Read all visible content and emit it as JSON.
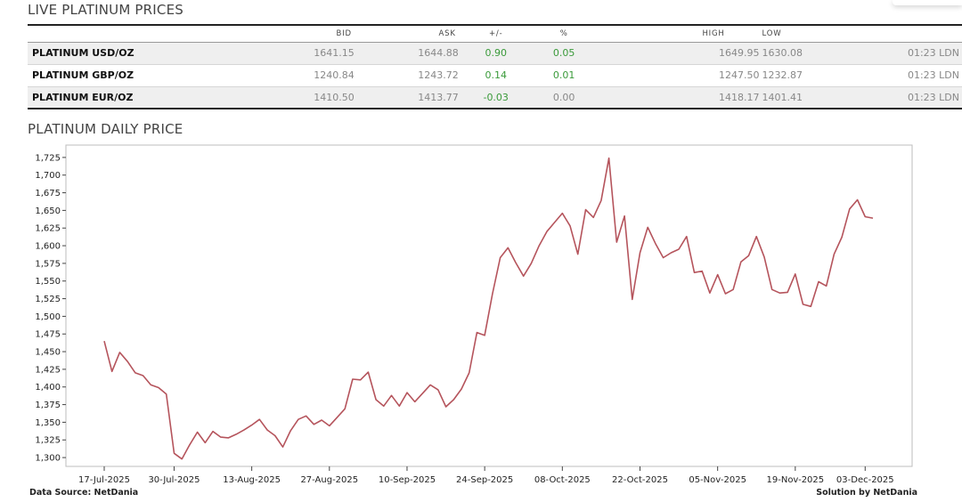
{
  "live": {
    "title": "LIVE PLATINUM PRICES",
    "headers": [
      "",
      "BID",
      "ASK",
      "+/-",
      "%",
      "HIGH",
      "LOW",
      ""
    ],
    "rows": [
      {
        "name": "PLATINUM USD/OZ",
        "bid": "1641.15",
        "ask": "1644.88",
        "change": "0.90",
        "pct": "0.05",
        "high": "1649.95",
        "low": "1630.08",
        "time": "01:23 LDN"
      },
      {
        "name": "PLATINUM GBP/OZ",
        "bid": "1240.84",
        "ask": "1243.72",
        "change": "0.14",
        "pct": "0.01",
        "high": "1247.50",
        "low": "1232.87",
        "time": "01:23 LDN"
      },
      {
        "name": "PLATINUM EUR/OZ",
        "bid": "1410.50",
        "ask": "1413.77",
        "change": "-0.03",
        "pct": "0.00",
        "high": "1418.17",
        "low": "1401.41",
        "time": "01:23 LDN"
      }
    ]
  },
  "daily": {
    "title": "PLATINUM DAILY PRICE"
  },
  "footer": {
    "source": "Data Source: NetDania",
    "solution": "Solution by NetDania"
  },
  "colors": {
    "line": "#b5545c",
    "positive": "#3a9a3a"
  },
  "chart_data": {
    "type": "line",
    "title": "",
    "xlabel": "",
    "ylabel": "",
    "ylim": [
      1287.5,
      1742.5
    ],
    "yticks": [
      1300,
      1325,
      1350,
      1375,
      1400,
      1425,
      1450,
      1475,
      1500,
      1525,
      1550,
      1575,
      1600,
      1625,
      1650,
      1675,
      1700,
      1725
    ],
    "ytick_labels": [
      "1,300",
      "1,325",
      "1,350",
      "1,375",
      "1,400",
      "1,425",
      "1,450",
      "1,475",
      "1,500",
      "1,525",
      "1,550",
      "1,575",
      "1,600",
      "1,625",
      "1,650",
      "1,675",
      "1,700",
      "1,725"
    ],
    "xtick_labels": [
      "17-Jul-2025",
      "30-Jul-2025",
      "13-Aug-2025",
      "27-Aug-2025",
      "10-Sep-2025",
      "24-Sep-2025",
      "08-Oct-2025",
      "22-Oct-2025",
      "05-Nov-2025",
      "19-Nov-2025",
      "03-Dec-2025"
    ],
    "xtick_index": [
      0,
      9,
      19,
      29,
      39,
      49,
      59,
      69,
      79,
      89,
      98
    ],
    "grid": false,
    "series": [
      {
        "values": [
          1465,
          1422,
          1449,
          1436,
          1420,
          1416,
          1403,
          1399,
          1390,
          1306,
          1298,
          1318,
          1336,
          1321,
          1337,
          1329,
          1328,
          1333,
          1339,
          1346,
          1354,
          1339,
          1331,
          1315,
          1338,
          1354,
          1359,
          1347,
          1353,
          1345,
          1357,
          1369,
          1411,
          1410,
          1421,
          1382,
          1373,
          1388,
          1373,
          1392,
          1379,
          1391,
          1403,
          1396,
          1372,
          1382,
          1397,
          1420,
          1477,
          1473,
          1532,
          1583,
          1597,
          1576,
          1557,
          1575,
          1600,
          1620,
          1633,
          1646,
          1628,
          1588,
          1651,
          1640,
          1664,
          1724,
          1605,
          1642,
          1524,
          1590,
          1626,
          1603,
          1583,
          1590,
          1595,
          1613,
          1562,
          1564,
          1533,
          1559,
          1532,
          1538,
          1577,
          1586,
          1613,
          1584,
          1538,
          1533,
          1534,
          1560,
          1517,
          1514,
          1549,
          1543,
          1588,
          1612,
          1652,
          1665,
          1641,
          1639
        ]
      }
    ]
  }
}
